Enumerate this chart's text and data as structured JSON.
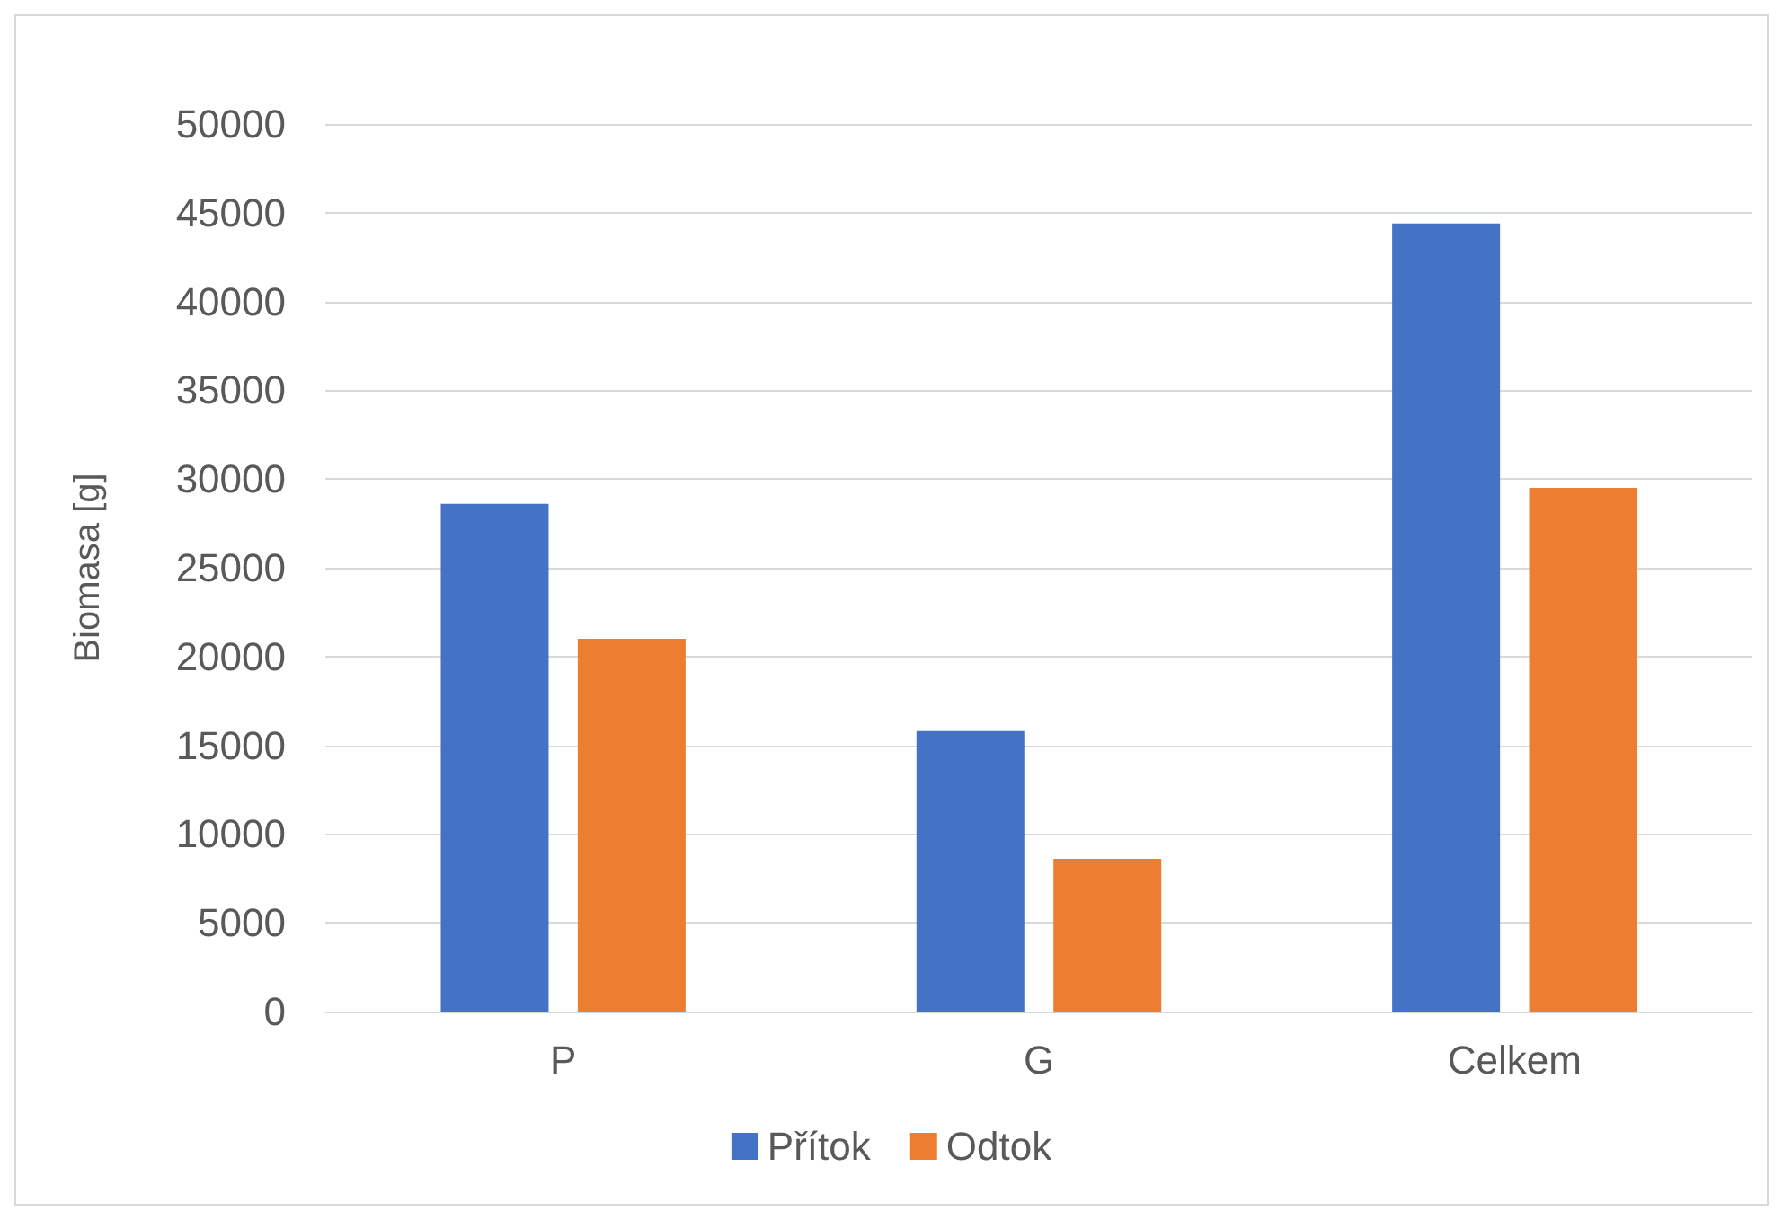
{
  "chart_data": {
    "type": "bar",
    "ylabel": "Biomasa [g]",
    "categories": [
      "P",
      "G",
      "Celkem"
    ],
    "series": [
      {
        "name": "Přítok",
        "color": "#4472c4",
        "values": [
          28600,
          15800,
          44400
        ]
      },
      {
        "name": "Odtok",
        "color": "#ed7d31",
        "values": [
          21000,
          8600,
          29500
        ]
      }
    ],
    "ylim": [
      0,
      50000
    ],
    "yticks": [
      0,
      5000,
      10000,
      15000,
      20000,
      25000,
      30000,
      35000,
      40000,
      45000,
      50000
    ],
    "grid": "y",
    "legend": "bottom"
  }
}
